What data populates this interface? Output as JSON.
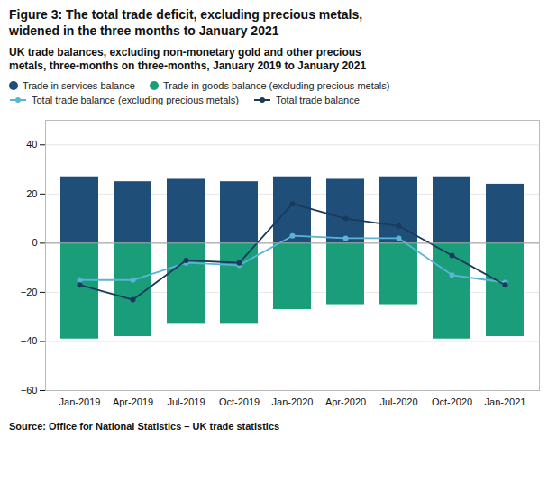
{
  "chart_data": {
    "type": "bar",
    "title": "Figure 3: The total trade deficit, excluding precious metals,\nwidened in the three months to January 2021",
    "subtitle": "UK trade balances, excluding non-monetary gold and other precious\nmetals, three-months on three-months, January 2019 to January 2021",
    "source": "Source: Office for National Statistics – UK trade statistics",
    "categories": [
      "Jan-2019",
      "Apr-2019",
      "Jul-2019",
      "Oct-2019",
      "Jan-2020",
      "Apr-2020",
      "Jul-2020",
      "Oct-2020",
      "Jan-2021"
    ],
    "series": [
      {
        "name": "Trade in services balance",
        "type": "bar",
        "color": "#1f4e79",
        "values": [
          27,
          25,
          26,
          25,
          27,
          26,
          27,
          27,
          24
        ]
      },
      {
        "name": "Trade in goods balance (excluding precious metals)",
        "type": "bar",
        "color": "#1a9e7a",
        "values": [
          -39,
          -38,
          -33,
          -33,
          -27,
          -25,
          -25,
          -39,
          -38
        ]
      },
      {
        "name": "Total trade balance (excluding precious metals)",
        "type": "line",
        "marker": "o",
        "color": "#5ab4d6",
        "values": [
          -15,
          -15,
          -8,
          -9,
          3,
          2,
          2,
          -13,
          -16
        ]
      },
      {
        "name": "Total trade balance",
        "type": "line",
        "marker": "o",
        "color": "#1a3a5c",
        "values": [
          -17,
          -23,
          -7,
          -8,
          16,
          10,
          7,
          -5,
          -17
        ]
      }
    ],
    "ylim": [
      -60,
      50
    ],
    "yticks": [
      -60,
      -40,
      -20,
      0,
      20,
      40
    ],
    "grid": true,
    "legend": "top"
  }
}
